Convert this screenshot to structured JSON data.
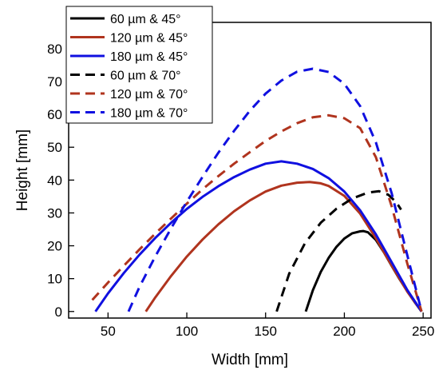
{
  "chart_data": {
    "type": "line",
    "xlabel": "Width [mm]",
    "ylabel": "Height [mm]",
    "xlim": [
      25,
      255
    ],
    "ylim": [
      -2,
      88
    ],
    "xticks": [
      50,
      100,
      150,
      200,
      250
    ],
    "yticks": [
      0,
      10,
      20,
      30,
      40,
      50,
      60,
      70,
      80
    ],
    "xtick_labels": [
      "50",
      "100",
      "150",
      "200",
      "250"
    ],
    "ytick_labels": [
      "0",
      "10",
      "20",
      "30",
      "40",
      "50",
      "60",
      "70",
      "80"
    ],
    "grid": false,
    "legend_position": "top-left",
    "series": [
      {
        "name": "60 µm & 45°",
        "color": "#000000",
        "style": "solid",
        "x": [
          175.5,
          180,
          185,
          190,
          195,
          200,
          205,
          210,
          212,
          215,
          220,
          225,
          230,
          235,
          240,
          245,
          249
        ],
        "y": [
          0,
          6.5,
          12,
          16.3,
          19.7,
          22.2,
          23.8,
          24.4,
          24.5,
          24.1,
          21.8,
          18.1,
          13.9,
          9.9,
          6.1,
          2.6,
          0
        ]
      },
      {
        "name": "120 µm & 45°",
        "color": "#b0341e",
        "style": "solid",
        "x": [
          74,
          80,
          90,
          100,
          110,
          120,
          130,
          140,
          150,
          160,
          170,
          178,
          185,
          190,
          200,
          210,
          220,
          230,
          240,
          249
        ],
        "y": [
          0,
          4.3,
          10.8,
          16.7,
          21.9,
          26.5,
          30.5,
          33.8,
          36.5,
          38.3,
          39.2,
          39.4,
          39.0,
          38.2,
          35.2,
          29.8,
          22.3,
          14.0,
          6.0,
          0
        ]
      },
      {
        "name": "180 µm & 45°",
        "color": "#1010e0",
        "style": "solid",
        "x": [
          42,
          50,
          60,
          70,
          80,
          90,
          100,
          110,
          120,
          130,
          140,
          150,
          160,
          170,
          180,
          190,
          200,
          210,
          220,
          230,
          240,
          249
        ],
        "y": [
          0,
          5.5,
          11.7,
          17.3,
          22.4,
          27.0,
          31.2,
          34.9,
          38.1,
          40.9,
          43.2,
          45.0,
          45.7,
          45.0,
          43.4,
          40.6,
          36.5,
          30.8,
          23.5,
          15.0,
          6.5,
          0
        ]
      },
      {
        "name": "60 µm & 70°",
        "color": "#000000",
        "style": "dashed",
        "x": [
          157,
          165,
          175,
          185,
          195,
          205,
          215,
          222,
          228,
          233,
          236
        ],
        "y": [
          0,
          11.5,
          20.8,
          27.0,
          31.3,
          34.4,
          36.2,
          36.6,
          35.5,
          33.2,
          31.0
        ]
      },
      {
        "name": "120 µm & 70°",
        "color": "#b0341e",
        "style": "dashed",
        "x": [
          40,
          50,
          60,
          70,
          80,
          90,
          100,
          110,
          120,
          130,
          140,
          150,
          160,
          170,
          180,
          190,
          200,
          210,
          220,
          230,
          240,
          249
        ],
        "y": [
          3.5,
          8.8,
          13.9,
          18.9,
          23.7,
          28.3,
          32.8,
          37.2,
          41.2,
          45.0,
          48.5,
          51.9,
          54.8,
          57.3,
          59.1,
          59.7,
          58.8,
          55.8,
          47.0,
          32.0,
          14.5,
          0
        ]
      },
      {
        "name": "180 µm & 70°",
        "color": "#1010e0",
        "style": "dashed",
        "x": [
          63,
          70,
          80,
          90,
          100,
          110,
          120,
          130,
          140,
          150,
          160,
          170,
          180,
          190,
          200,
          210,
          220,
          230,
          240,
          249
        ],
        "y": [
          0,
          7.5,
          16.8,
          25.3,
          33.4,
          41.0,
          48.3,
          55.0,
          61.1,
          66.3,
          70.3,
          73.0,
          73.9,
          72.9,
          69.3,
          62.5,
          51.5,
          36.0,
          17.0,
          0
        ]
      }
    ]
  }
}
